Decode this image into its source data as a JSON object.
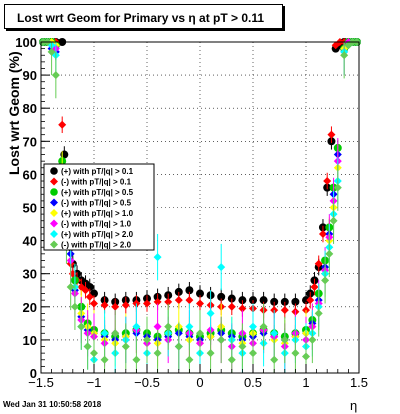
{
  "header": {
    "title": "Lost wrt Geom for Primary vs   η at pT > 0.11"
  },
  "footer": {
    "timestamp": "Wed Jan 31 10:50:58 2018"
  },
  "colors": {
    "frame": "#000000",
    "grid": "#000000"
  },
  "chart_data": {
    "type": "scatter",
    "xlabel": "η",
    "ylabel": "Lost wrt Geom (%)",
    "xlim": [
      -1.5,
      1.5
    ],
    "ylim": [
      0,
      100
    ],
    "xticks": [
      "−1.5",
      "−1",
      "−0.5",
      "0",
      "0.5",
      "1",
      "1.5"
    ],
    "yticks": [
      "0",
      "10",
      "20",
      "30",
      "40",
      "50",
      "60",
      "70",
      "80",
      "90",
      "100"
    ],
    "grid": true,
    "legend_position": "left-middle",
    "series": [
      {
        "name": "(+) with pT/|q| > 0.1",
        "color": "#000000",
        "x": [
          -1.48,
          -1.44,
          -1.4,
          -1.36,
          -1.3,
          -1.28,
          -1.26,
          -1.24,
          -1.22,
          -1.2,
          -1.16,
          -1.12,
          -1.08,
          -1.04,
          -1.0,
          -0.9,
          -0.8,
          -0.7,
          -0.6,
          -0.5,
          -0.4,
          -0.3,
          -0.2,
          -0.1,
          0.0,
          0.1,
          0.2,
          0.3,
          0.4,
          0.5,
          0.6,
          0.7,
          0.8,
          0.9,
          1.0,
          1.04,
          1.08,
          1.12,
          1.16,
          1.2,
          1.24,
          1.28,
          1.32,
          1.36,
          1.4,
          1.44,
          1.48
        ],
        "y": [
          100,
          100,
          100,
          100,
          100,
          66,
          60,
          48,
          38,
          33,
          30,
          28,
          27,
          26,
          24,
          22,
          21.5,
          22,
          22,
          22.5,
          23,
          23.5,
          24.5,
          25,
          24,
          23.5,
          23,
          22.5,
          22,
          22,
          22,
          21.5,
          21.5,
          21.5,
          22,
          24,
          28,
          32,
          44,
          56,
          70,
          98,
          99,
          100,
          100,
          100,
          100
        ]
      },
      {
        "name": "(-) with pT/|q| > 0.1",
        "color": "#ff0000",
        "x": [
          -1.48,
          -1.44,
          -1.4,
          -1.36,
          -1.3,
          -1.28,
          -1.26,
          -1.24,
          -1.22,
          -1.2,
          -1.16,
          -1.12,
          -1.08,
          -1.04,
          -1.0,
          -0.9,
          -0.8,
          -0.7,
          -0.6,
          -0.5,
          -0.4,
          -0.3,
          -0.2,
          -0.1,
          0.0,
          0.1,
          0.2,
          0.3,
          0.4,
          0.5,
          0.6,
          0.7,
          0.8,
          0.9,
          1.0,
          1.04,
          1.08,
          1.12,
          1.16,
          1.2,
          1.24,
          1.28,
          1.32,
          1.36,
          1.4,
          1.44,
          1.48
        ],
        "y": [
          100,
          100,
          100,
          100,
          75,
          62,
          52,
          40,
          33,
          30,
          28,
          26,
          25,
          23,
          21,
          20.5,
          20,
          20.5,
          21,
          21,
          21.5,
          21.5,
          22,
          22,
          21,
          20.5,
          20,
          20,
          19.5,
          19.5,
          19,
          19,
          19,
          18.5,
          19,
          22,
          26,
          33,
          42,
          58,
          72,
          99,
          100,
          100,
          100,
          100,
          100
        ]
      },
      {
        "name": "(+) with pT/|q| > 0.5",
        "color": "#00cc00",
        "x": [
          -1.48,
          -1.44,
          -1.4,
          -1.36,
          -1.3,
          -1.26,
          -1.22,
          -1.18,
          -1.12,
          -1.06,
          -1.0,
          -0.9,
          -0.8,
          -0.7,
          -0.6,
          -0.5,
          -0.4,
          -0.3,
          -0.2,
          -0.1,
          0.0,
          0.1,
          0.2,
          0.3,
          0.4,
          0.5,
          0.6,
          0.7,
          0.8,
          0.9,
          1.0,
          1.06,
          1.12,
          1.18,
          1.22,
          1.26,
          1.3,
          1.36,
          1.4,
          1.44,
          1.48
        ],
        "y": [
          100,
          100,
          100,
          99,
          64,
          55,
          40,
          28,
          20,
          15,
          13,
          12,
          11,
          12,
          13,
          12,
          11,
          12,
          13,
          12,
          11,
          12,
          13,
          12,
          11,
          12,
          13,
          12,
          11,
          12,
          13,
          16,
          24,
          34,
          44,
          56,
          68,
          98,
          100,
          100,
          100
        ]
      },
      {
        "name": "(-) with pT/|q| > 0.5",
        "color": "#0000ff",
        "x": [
          -1.48,
          -1.44,
          -1.4,
          -1.36,
          -1.3,
          -1.26,
          -1.22,
          -1.18,
          -1.12,
          -1.06,
          -1.0,
          -0.9,
          -0.8,
          -0.7,
          -0.6,
          -0.5,
          -0.4,
          -0.3,
          -0.2,
          -0.1,
          0.0,
          0.1,
          0.2,
          0.3,
          0.4,
          0.5,
          0.6,
          0.7,
          0.8,
          0.9,
          1.0,
          1.06,
          1.12,
          1.18,
          1.22,
          1.26,
          1.3,
          1.36,
          1.4,
          1.44,
          1.48
        ],
        "y": [
          100,
          100,
          98,
          97,
          58,
          50,
          36,
          25,
          17,
          13,
          12,
          11,
          10,
          11,
          12,
          11,
          10,
          11,
          12,
          11,
          10,
          11,
          12,
          11,
          10,
          11,
          12,
          11,
          10,
          11,
          12,
          15,
          22,
          32,
          42,
          54,
          66,
          98,
          100,
          100,
          100
        ]
      },
      {
        "name": "(+) with pT/|q| > 1.0",
        "color": "#ffff00",
        "x": [
          -1.48,
          -1.44,
          -1.4,
          -1.36,
          -1.3,
          -1.26,
          -1.22,
          -1.18,
          -1.12,
          -1.06,
          -1.0,
          -0.9,
          -0.8,
          -0.7,
          -0.6,
          -0.5,
          -0.4,
          -0.3,
          -0.2,
          -0.1,
          0.0,
          0.1,
          0.2,
          0.3,
          0.4,
          0.5,
          0.6,
          0.7,
          0.8,
          0.9,
          1.0,
          1.06,
          1.12,
          1.18,
          1.22,
          1.26,
          1.3,
          1.36,
          1.4,
          1.44,
          1.48
        ],
        "y": [
          100,
          100,
          100,
          99,
          60,
          50,
          42,
          26,
          18,
          14,
          12,
          10,
          9,
          11,
          13,
          10,
          9,
          12,
          14,
          10,
          9,
          11,
          14,
          10,
          9,
          12,
          13,
          10,
          9,
          11,
          12,
          14,
          20,
          30,
          40,
          50,
          62,
          98,
          100,
          100,
          100
        ]
      },
      {
        "name": "(-) with pT/|q| > 1.0",
        "color": "#ff00ff",
        "x": [
          -1.48,
          -1.44,
          -1.4,
          -1.36,
          -1.3,
          -1.26,
          -1.22,
          -1.18,
          -1.12,
          -1.06,
          -1.0,
          -0.9,
          -0.8,
          -0.7,
          -0.6,
          -0.5,
          -0.4,
          -0.3,
          -0.2,
          -0.1,
          0.0,
          0.1,
          0.2,
          0.3,
          0.4,
          0.5,
          0.6,
          0.7,
          0.8,
          0.9,
          1.0,
          1.06,
          1.12,
          1.18,
          1.22,
          1.26,
          1.3,
          1.36,
          1.4,
          1.44,
          1.48
        ],
        "y": [
          100,
          100,
          99,
          98,
          55,
          46,
          34,
          24,
          16,
          12,
          11,
          9,
          12,
          10,
          13,
          9,
          14,
          10,
          8,
          12,
          9,
          13,
          10,
          8,
          12,
          9,
          13,
          11,
          8,
          12,
          10,
          14,
          21,
          31,
          41,
          52,
          64,
          97,
          100,
          100,
          100
        ]
      },
      {
        "name": "(+) with pT/|q| > 2.0",
        "color": "#00ffff",
        "x": [
          -1.48,
          -1.44,
          -1.4,
          -1.36,
          -1.3,
          -1.26,
          -1.22,
          -1.18,
          -1.12,
          -1.06,
          -1.0,
          -0.9,
          -0.8,
          -0.7,
          -0.6,
          -0.5,
          -0.4,
          -0.3,
          -0.2,
          -0.1,
          0.0,
          0.1,
          0.2,
          0.3,
          0.4,
          0.5,
          0.6,
          0.7,
          0.8,
          0.9,
          1.0,
          1.06,
          1.12,
          1.18,
          1.22,
          1.26,
          1.3,
          1.36,
          1.4,
          1.44,
          1.48
        ],
        "y": [
          100,
          100,
          99,
          96,
          52,
          44,
          38,
          26,
          14,
          8,
          4,
          12,
          6,
          10,
          14,
          6,
          35,
          12,
          8,
          14,
          6,
          18,
          32,
          10,
          6,
          14,
          9,
          12,
          6,
          10,
          8,
          12,
          20,
          30,
          38,
          48,
          58,
          97,
          99,
          100,
          100
        ]
      },
      {
        "name": "(-) with pT/|q| > 2.0",
        "color": "#66cc55",
        "x": [
          -1.48,
          -1.44,
          -1.4,
          -1.36,
          -1.3,
          -1.26,
          -1.22,
          -1.18,
          -1.12,
          -1.06,
          -1.0,
          -0.9,
          -0.8,
          -0.7,
          -0.6,
          -0.5,
          -0.4,
          -0.3,
          -0.2,
          -0.1,
          0.0,
          0.1,
          0.2,
          0.3,
          0.4,
          0.5,
          0.6,
          0.7,
          0.8,
          0.9,
          1.0,
          1.06,
          1.12,
          1.18,
          1.22,
          1.26,
          1.3,
          1.36,
          1.4,
          1.44,
          1.48
        ],
        "y": [
          100,
          100,
          97,
          90,
          48,
          40,
          26,
          20,
          14,
          8,
          6,
          4,
          12,
          8,
          4,
          10,
          6,
          14,
          8,
          4,
          12,
          6,
          10,
          4,
          8,
          6,
          14,
          4,
          10,
          6,
          5,
          10,
          18,
          28,
          36,
          46,
          56,
          96,
          99,
          100,
          100
        ]
      }
    ]
  }
}
